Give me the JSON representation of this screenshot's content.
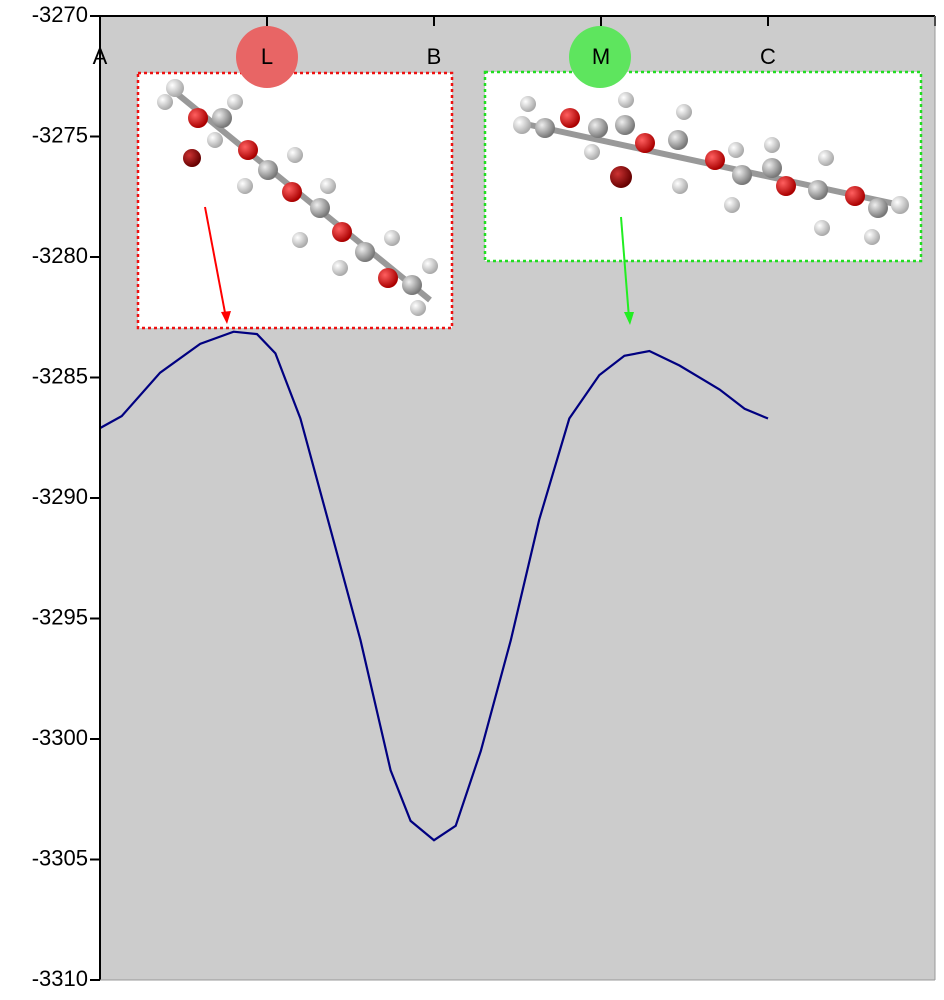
{
  "chart_data": {
    "type": "line",
    "x": [
      0,
      0.13,
      0.36,
      0.6,
      0.8,
      0.94,
      1.05,
      1.2,
      1.38,
      1.56,
      1.74,
      1.86,
      2.0,
      2.13,
      2.28,
      2.46,
      2.63,
      2.81,
      2.99,
      3.14,
      3.29,
      3.47,
      3.71,
      3.86,
      4.0
    ],
    "values": [
      -3287.1,
      -3286.6,
      -3284.8,
      -3283.6,
      -3283.1,
      -3283.2,
      -3284.0,
      -3286.7,
      -3291.3,
      -3295.9,
      -3301.3,
      -3303.4,
      -3304.2,
      -3303.6,
      -3300.5,
      -3295.9,
      -3290.9,
      -3286.7,
      -3284.9,
      -3284.1,
      -3283.9,
      -3284.5,
      -3285.5,
      -3286.3,
      -3286.7
    ],
    "color": "#000080",
    "xlim": [
      0,
      5
    ],
    "xticks": [
      {
        "value": 0,
        "label": "A"
      },
      {
        "value": 1,
        "label": "L"
      },
      {
        "value": 2,
        "label": "B"
      },
      {
        "value": 3,
        "label": "M"
      },
      {
        "value": 4,
        "label": "C"
      }
    ],
    "ylim": [
      -3310,
      -3270
    ],
    "yticks": [
      -3310,
      -3305,
      -3300,
      -3295,
      -3290,
      -3285,
      -3280,
      -3275,
      -3270
    ]
  }
}
